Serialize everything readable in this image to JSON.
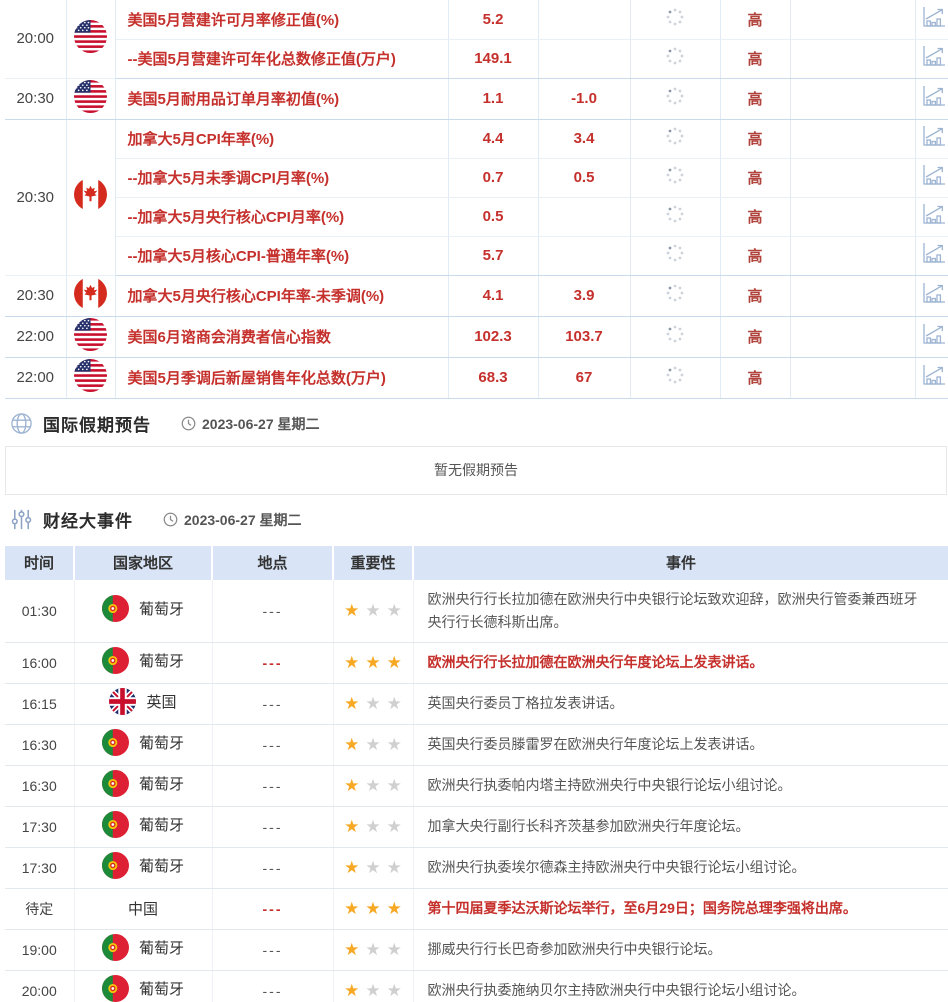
{
  "colors": {
    "accent_red": "#c5302c",
    "importance_red": "#b0433c",
    "table_header_bg": "#d9e5f7",
    "star_gold": "#f7a824",
    "star_gray": "#d0d0d0",
    "icon_blue": "#9db4d2",
    "group_border": "#c9daeb"
  },
  "icons": {
    "holiday_section": "globe-icon",
    "events_section": "sliders-icon",
    "date": "clock-icon",
    "pending_value": "spinner-icon",
    "history_chart": "bar-chart-icon",
    "importance": "star-icon"
  },
  "econ_table": {
    "importance_label": "高",
    "groups": [
      {
        "time": "20:00",
        "flag": "us",
        "rows": [
          {
            "name": "美国5月营建许可月率修正值(%)",
            "actual": "5.2",
            "forecast": "",
            "importance": "高"
          },
          {
            "name": "--美国5月营建许可年化总数修正值(万户)",
            "actual": "149.1",
            "forecast": "",
            "importance": "高"
          }
        ]
      },
      {
        "time": "20:30",
        "flag": "us",
        "rows": [
          {
            "name": "美国5月耐用品订单月率初值(%)",
            "actual": "1.1",
            "forecast": "-1.0",
            "importance": "高"
          }
        ]
      },
      {
        "time": "20:30",
        "flag": "ca",
        "rows": [
          {
            "name": "加拿大5月CPI年率(%)",
            "actual": "4.4",
            "forecast": "3.4",
            "importance": "高"
          },
          {
            "name": "--加拿大5月未季调CPI月率(%)",
            "actual": "0.7",
            "forecast": "0.5",
            "importance": "高"
          },
          {
            "name": "--加拿大5月央行核心CPI月率(%)",
            "actual": "0.5",
            "forecast": "",
            "importance": "高"
          },
          {
            "name": "--加拿大5月核心CPI-普通年率(%)",
            "actual": "5.7",
            "forecast": "",
            "importance": "高"
          }
        ]
      },
      {
        "time": "20:30",
        "flag": "ca",
        "rows": [
          {
            "name": "加拿大5月央行核心CPI年率-未季调(%)",
            "actual": "4.1",
            "forecast": "3.9",
            "importance": "高"
          }
        ]
      },
      {
        "time": "22:00",
        "flag": "us",
        "rows": [
          {
            "name": "美国6月谘商会消费者信心指数",
            "actual": "102.3",
            "forecast": "103.7",
            "importance": "高"
          }
        ]
      },
      {
        "time": "22:00",
        "flag": "us",
        "rows": [
          {
            "name": "美国5月季调后新屋销售年化总数(万户)",
            "actual": "68.3",
            "forecast": "67",
            "importance": "高"
          }
        ]
      }
    ]
  },
  "holiday_section": {
    "title": "国际假期预告",
    "date": "2023-06-27 星期二",
    "empty_text": "暂无假期预告"
  },
  "events_section": {
    "title": "财经大事件",
    "date": "2023-06-27 星期二",
    "columns": [
      "时间",
      "国家地区",
      "地点",
      "重要性",
      "事件"
    ],
    "rows": [
      {
        "time": "01:30",
        "country": "葡萄牙",
        "flag": "pt",
        "location": "---",
        "stars": 1,
        "highlight": false,
        "event": "欧洲央行行长拉加德在欧洲央行中央银行论坛致欢迎辞，欧洲央行管委兼西班牙央行行长德科斯出席。"
      },
      {
        "time": "16:00",
        "country": "葡萄牙",
        "flag": "pt",
        "location": "---",
        "stars": 3,
        "highlight": true,
        "event": "欧洲央行行长拉加德在欧洲央行年度论坛上发表讲话。"
      },
      {
        "time": "16:15",
        "country": "英国",
        "flag": "gb",
        "location": "---",
        "stars": 1,
        "highlight": false,
        "event": "英国央行委员丁格拉发表讲话。"
      },
      {
        "time": "16:30",
        "country": "葡萄牙",
        "flag": "pt",
        "location": "---",
        "stars": 1,
        "highlight": false,
        "event": "英国央行委员滕雷罗在欧洲央行年度论坛上发表讲话。"
      },
      {
        "time": "16:30",
        "country": "葡萄牙",
        "flag": "pt",
        "location": "---",
        "stars": 1,
        "highlight": false,
        "event": "欧洲央行执委帕内塔主持欧洲央行中央银行论坛小组讨论。"
      },
      {
        "time": "17:30",
        "country": "葡萄牙",
        "flag": "pt",
        "location": "---",
        "stars": 1,
        "highlight": false,
        "event": "加拿大央行副行长科齐茨基参加欧洲央行年度论坛。"
      },
      {
        "time": "17:30",
        "country": "葡萄牙",
        "flag": "pt",
        "location": "---",
        "stars": 1,
        "highlight": false,
        "event": "欧洲央行执委埃尔德森主持欧洲央行中央银行论坛小组讨论。"
      },
      {
        "time": "待定",
        "country": "中国",
        "flag": null,
        "location": "---",
        "stars": 3,
        "highlight": true,
        "event": "第十四届夏季达沃斯论坛举行，至6月29日；国务院总理李强将出席。"
      },
      {
        "time": "19:00",
        "country": "葡萄牙",
        "flag": "pt",
        "location": "---",
        "stars": 1,
        "highlight": false,
        "event": "挪威央行行长巴奇参加欧洲央行中央银行论坛。"
      },
      {
        "time": "20:00",
        "country": "葡萄牙",
        "flag": "pt",
        "location": "---",
        "stars": 1,
        "highlight": false,
        "event": "欧洲央行执委施纳贝尔主持欧洲央行中央银行论坛小组讨论。"
      }
    ]
  }
}
